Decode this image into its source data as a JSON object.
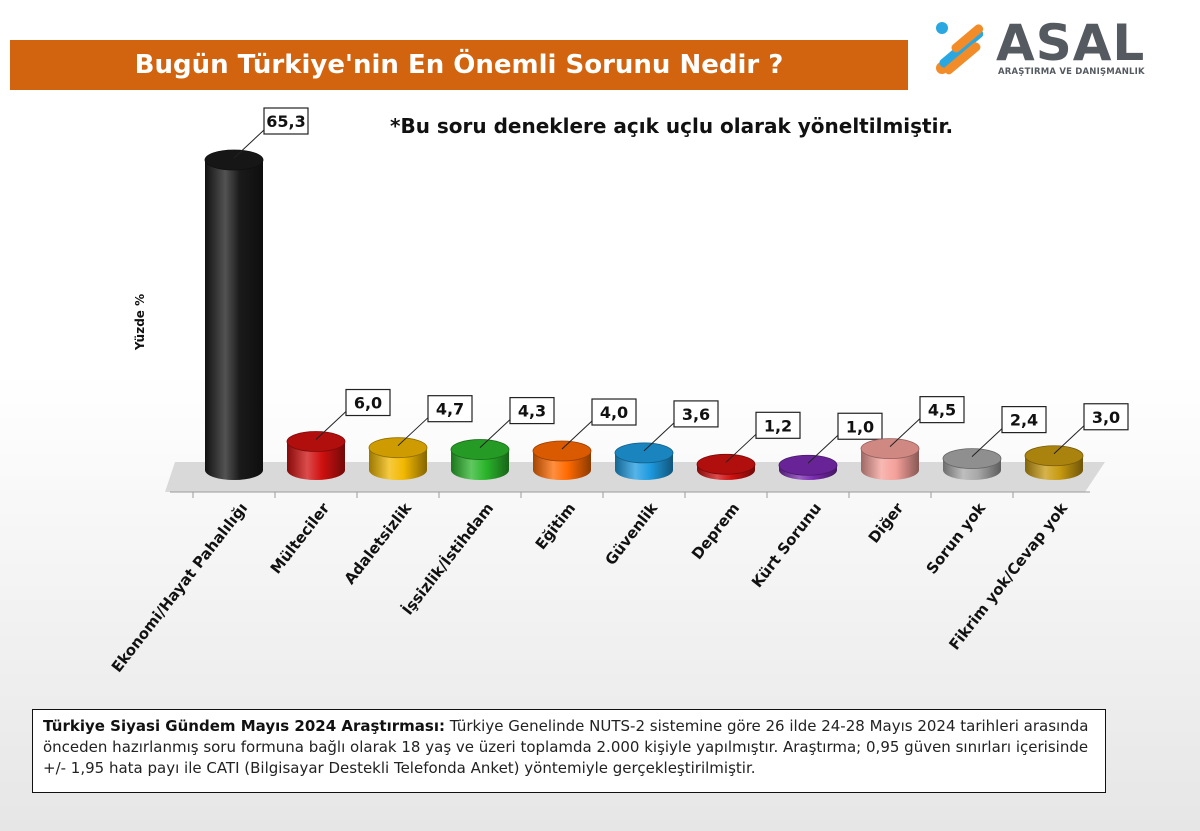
{
  "header": {
    "title": "Bugün Türkiye'nin En Önemli Sorunu Nedir ?"
  },
  "logo": {
    "name": "ASAL",
    "subtitle": "ARAŞTIRMA VE DANIŞMANLIK"
  },
  "note": "*Bu soru deneklere açık uçlu olarak yöneltilmiştir.",
  "chart_data": {
    "type": "bar",
    "title": "Bugün Türkiye'nin En Önemli Sorunu Nedir ?",
    "ylabel": "Yüzde  %",
    "xlabel": "",
    "ylim": [
      0,
      70
    ],
    "grid": false,
    "categories": [
      "Ekonomi/Hayat Pahalılığı",
      "Mülteciler",
      "Adaletsizlik",
      "İşsizlik/İstihdam",
      "Eğitim",
      "Güvenlik",
      "Deprem",
      "Kürt Sorunu",
      "Diğer",
      "Sorun yok",
      "Fikrim yok/Cevap yok"
    ],
    "values": [
      65.3,
      6.0,
      4.7,
      4.3,
      4.0,
      3.6,
      1.2,
      1.0,
      4.5,
      2.4,
      3.0
    ],
    "value_labels": [
      "65,3",
      "6,0",
      "4,7",
      "4,3",
      "4,0",
      "3,6",
      "1,2",
      "1,0",
      "4,5",
      "2,4",
      "3,0"
    ],
    "colors": [
      "#1a1a1a",
      "#d01010",
      "#f2b800",
      "#2bb52b",
      "#ff6a00",
      "#1e9be0",
      "#d01010",
      "#7a2ab0",
      "#f5a09a",
      "#a8a8a8",
      "#c89a10"
    ]
  },
  "footer": {
    "bold": "Türkiye Siyasi Gündem Mayıs 2024 Araştırması:",
    "text": " Türkiye Genelinde NUTS-2 sistemine göre 26 ilde 24-28 Mayıs 2024 tarihleri arasında önceden hazırlanmış soru formuna bağlı olarak 18 yaş ve üzeri toplamda 2.000 kişiyle yapılmıştır. Araştırma; 0,95 güven sınırları içerisinde +/- 1,95 hata payı ile CATI (Bilgisayar Destekli Telefonda Anket) yöntemiyle gerçekleştirilmiştir."
  }
}
